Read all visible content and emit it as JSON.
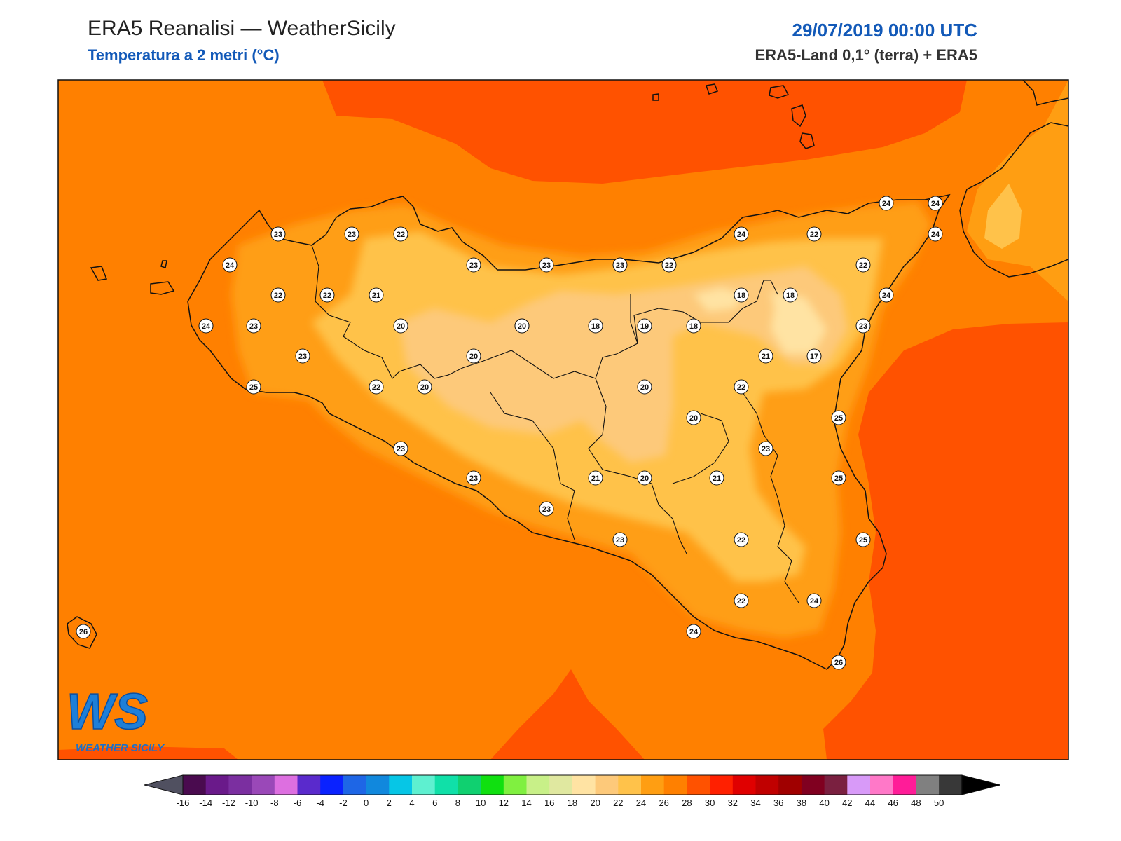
{
  "header": {
    "title": "ERA5 Reanalisi — WeatherSicily",
    "subtitle": "Temperatura a 2 metri (°C)",
    "datetime": "29/07/2019 00:00 UTC",
    "source": "ERA5-Land 0,1° (terra) + ERA5"
  },
  "logo": {
    "mark": "WS",
    "text": "WEATHER SICILY"
  },
  "colors": {
    "t16": "#ffe3a3",
    "t18": "#fdc97a",
    "t20": "#ffc24a",
    "t22": "#ff9e12",
    "t24": "#ff8000",
    "t26": "#ff5200",
    "coast": "#111111",
    "title_blue": "#1259b8"
  },
  "stations": [
    {
      "label": "23"
    },
    {
      "label": "23"
    },
    {
      "label": "22"
    },
    {
      "label": "24"
    },
    {
      "label": "22"
    },
    {
      "label": "22"
    },
    {
      "label": "21"
    },
    {
      "label": "24"
    },
    {
      "label": "23"
    },
    {
      "label": "20"
    },
    {
      "label": "23"
    },
    {
      "label": "25"
    },
    {
      "label": "22"
    },
    {
      "label": "20"
    },
    {
      "label": "20"
    },
    {
      "label": "23"
    },
    {
      "label": "23"
    },
    {
      "label": "23"
    },
    {
      "label": "20"
    },
    {
      "label": "20"
    },
    {
      "label": "18"
    },
    {
      "label": "19"
    },
    {
      "label": "18"
    },
    {
      "label": "22"
    },
    {
      "label": "24"
    },
    {
      "label": "22"
    },
    {
      "label": "18"
    },
    {
      "label": "18"
    },
    {
      "label": "24"
    },
    {
      "label": "24"
    },
    {
      "label": "24"
    },
    {
      "label": "22"
    },
    {
      "label": "24"
    },
    {
      "label": "23"
    },
    {
      "label": "17"
    },
    {
      "label": "21"
    },
    {
      "label": "20"
    },
    {
      "label": "22"
    },
    {
      "label": "20"
    },
    {
      "label": "25"
    },
    {
      "label": "23"
    },
    {
      "label": "21"
    },
    {
      "label": "20"
    },
    {
      "label": "21"
    },
    {
      "label": "25"
    },
    {
      "label": "23"
    },
    {
      "label": "23"
    },
    {
      "label": "23"
    },
    {
      "label": "23"
    },
    {
      "label": "22"
    },
    {
      "label": "25"
    },
    {
      "label": "22"
    },
    {
      "label": "24"
    },
    {
      "label": "24"
    },
    {
      "label": "26"
    },
    {
      "label": "26"
    }
  ],
  "colorbar": {
    "ticks": [
      "-16",
      "-14",
      "-12",
      "-10",
      "-8",
      "-6",
      "-4",
      "-2",
      "0",
      "2",
      "4",
      "6",
      "8",
      "10",
      "12",
      "14",
      "16",
      "18",
      "20",
      "22",
      "24",
      "26",
      "28",
      "30",
      "32",
      "34",
      "36",
      "38",
      "40",
      "42",
      "44",
      "46",
      "48",
      "50"
    ],
    "colors": [
      "#4a0b4f",
      "#6a1a8a",
      "#7b2fa0",
      "#9a48b8",
      "#dd6fe0",
      "#5a2acc",
      "#0a22ff",
      "#1e66e6",
      "#1188dd",
      "#06c6e6",
      "#5ef0d0",
      "#10e0a8",
      "#10d070",
      "#10e010",
      "#80f040",
      "#c8f088",
      "#e0e8a0",
      "#ffe3a3",
      "#fdc97a",
      "#ffc24a",
      "#ff9e12",
      "#ff8000",
      "#ff5200",
      "#ff2000",
      "#e00000",
      "#c00000",
      "#a00000",
      "#800020",
      "#7a2040",
      "#d89af8",
      "#ff78c8",
      "#ff1c98",
      "#808080",
      "#383838"
    ],
    "under_color": "#505060",
    "over_color": "#000000"
  }
}
